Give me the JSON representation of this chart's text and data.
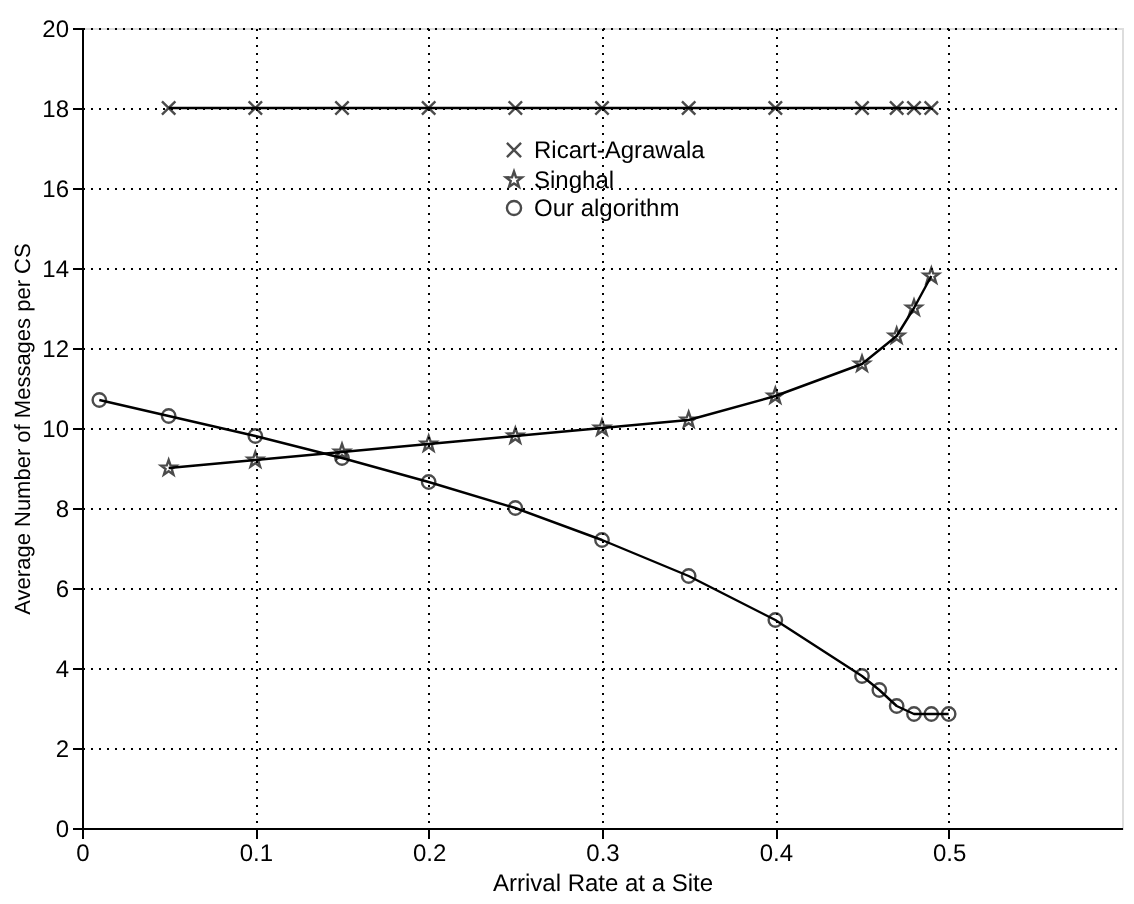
{
  "chart_data": {
    "type": "line",
    "xlabel": "Arrival Rate at a Site",
    "ylabel": "Average Number of Messages per CS",
    "xlim": [
      0,
      0.6
    ],
    "xticks": [
      0,
      0.1,
      0.2,
      0.3,
      0.4,
      0.5
    ],
    "ylim": [
      0,
      20
    ],
    "yticks": [
      0,
      2,
      4,
      6,
      8,
      10,
      12,
      14,
      16,
      18,
      20
    ],
    "grid": true,
    "legend": "top",
    "line_style": "solid",
    "series": [
      {
        "name": "Ricart-Agrawala",
        "color": "#000000",
        "marker": "cross",
        "x": [
          0.05,
          0.1,
          0.15,
          0.2,
          0.25,
          0.3,
          0.35,
          0.4,
          0.45,
          0.47,
          0.48,
          0.49
        ],
        "values": [
          18,
          18,
          18,
          18,
          18,
          18,
          18,
          18,
          18,
          18,
          18,
          18
        ]
      },
      {
        "name": "Singhal",
        "color": "#000000",
        "marker": "star",
        "x": [
          0.05,
          0.1,
          0.15,
          0.2,
          0.25,
          0.3,
          0.35,
          0.4,
          0.45,
          0.47,
          0.48,
          0.49
        ],
        "values": [
          9.0,
          9.2,
          9.4,
          9.6,
          9.8,
          10.0,
          10.2,
          10.8,
          11.6,
          12.3,
          13.0,
          13.8
        ]
      },
      {
        "name": "Our algorithm",
        "color": "#000000",
        "marker": "circle",
        "x": [
          0.01,
          0.05,
          0.1,
          0.15,
          0.2,
          0.25,
          0.3,
          0.35,
          0.4,
          0.45,
          0.46,
          0.47,
          0.48,
          0.49,
          0.5
        ],
        "values": [
          10.7,
          10.3,
          9.8,
          9.25,
          8.65,
          8.0,
          7.2,
          6.3,
          5.2,
          3.8,
          3.45,
          3.05,
          2.85,
          2.85,
          2.85
        ]
      }
    ]
  }
}
